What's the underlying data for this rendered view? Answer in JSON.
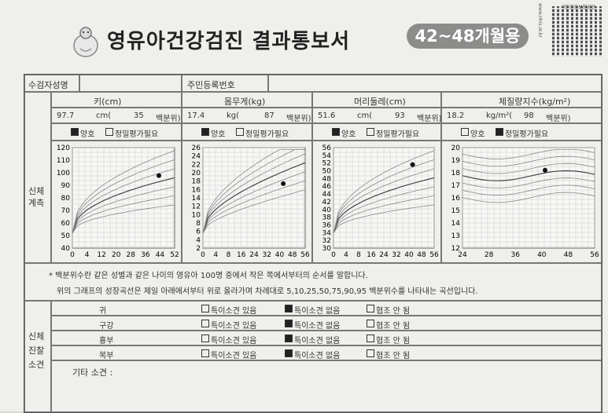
{
  "header": {
    "title": "영유아건강검진 결과통보서",
    "age_badge": "42~48개월용",
    "site_url": "www.nhis.or.kr",
    "agency": "국민건강보험공단"
  },
  "patient": {
    "name_label": "수검자성명",
    "id_label": "주민등록번호"
  },
  "measurements": {
    "section_label": "신체\n계측",
    "columns": [
      {
        "title": "키(cm)",
        "value": "97.7",
        "unit": "cm(",
        "pct": "35",
        "pct_unit": "백분위)",
        "good": "양호",
        "check": "정밀평가필요",
        "good_checked": true,
        "check_checked": false
      },
      {
        "title": "몸무게(kg)",
        "value": "17.4",
        "unit": "kg(",
        "pct": "87",
        "pct_unit": "백분위)",
        "good": "양호",
        "check": "정밀평가필요",
        "good_checked": true,
        "check_checked": false
      },
      {
        "title": "머리둘레(cm)",
        "value": "51.6",
        "unit": "cm(",
        "pct": "93",
        "pct_unit": "백분위)",
        "good": "양호",
        "check": "정밀평가필요",
        "good_checked": true,
        "check_checked": false
      },
      {
        "title": "체질량지수(kg/m²)",
        "value": "18.2",
        "unit": "kg/m²(",
        "pct": "98",
        "pct_unit": "백분위)",
        "good": "양호",
        "check": "정밀평가필요",
        "good_checked": false,
        "check_checked": true
      }
    ]
  },
  "chart_data": [
    {
      "type": "line",
      "x_ticks": [
        "0",
        "4",
        "12",
        "20",
        "28",
        "36",
        "44",
        "52"
      ],
      "y_ticks": [
        "40",
        "50",
        "60",
        "70",
        "80",
        "90",
        "100",
        "110",
        "120"
      ],
      "point": {
        "x": 44,
        "y": 97.7
      }
    },
    {
      "type": "line",
      "x_ticks": [
        "0",
        "4",
        "8",
        "16",
        "24",
        "32",
        "40",
        "48",
        "56"
      ],
      "y_ticks": [
        "2",
        "4",
        "6",
        "8",
        "10",
        "12",
        "14",
        "16",
        "18",
        "20",
        "22",
        "24",
        "26"
      ],
      "point": {
        "x": 44,
        "y": 17.4
      }
    },
    {
      "type": "line",
      "x_ticks": [
        "0",
        "4",
        "8",
        "16",
        "24",
        "32",
        "40",
        "48",
        "56"
      ],
      "y_ticks": [
        "30",
        "32",
        "34",
        "36",
        "38",
        "40",
        "42",
        "44",
        "46",
        "48",
        "50",
        "52",
        "54",
        "56"
      ],
      "point": {
        "x": 44,
        "y": 51.6
      }
    },
    {
      "type": "line",
      "x_ticks": [
        "24",
        "28",
        "36",
        "40",
        "48",
        "56"
      ],
      "y_ticks": [
        "12",
        "13",
        "14",
        "15",
        "16",
        "17",
        "18",
        "19",
        "20"
      ],
      "point": {
        "x": 44,
        "y": 18.2
      }
    }
  ],
  "notes": {
    "line1": "* 백분위수란 같은 성별과 같은 나이의 영유아 100명 중에서 작은 쪽에서부터의 순서를 말합니다.",
    "line2": "위의 그래프의 성장곡선은 제일 아래에서부터 위로 올라가며 차례대로 5,10,25,50,75,90,95 백분위수를 나타내는 곡선입니다."
  },
  "exam": {
    "section_label": "신체\n진찰\n소견",
    "opt_yes": "특이소견 있음",
    "opt_no": "특이소견 없음",
    "opt_na": "협조 안 됨",
    "rows": [
      "귀",
      "구강",
      "흉부",
      "복부"
    ],
    "other_label": "기타 소견 :"
  },
  "colors": {
    "ink": "#222222",
    "grid": "#c8c8c8",
    "badge": "#8c8c8a"
  }
}
